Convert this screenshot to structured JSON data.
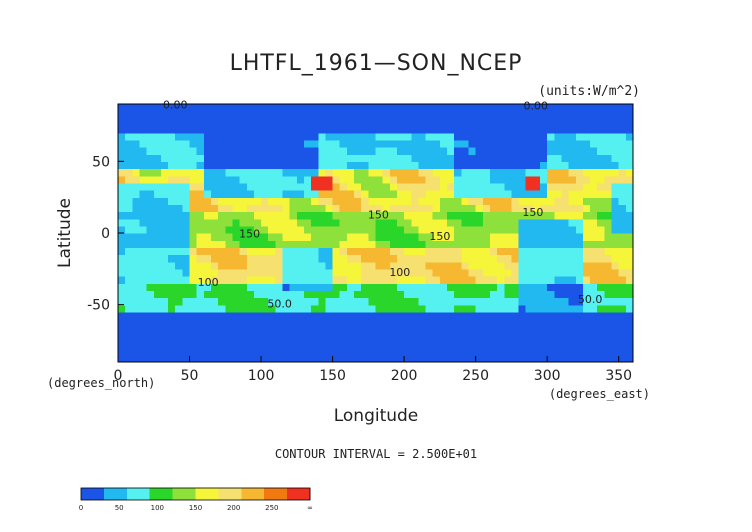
{
  "chart_data": {
    "type": "heatmap",
    "title": "LHTFL_1961—SON_NCEP",
    "units": "(units:W/m^2)",
    "xlabel": "Longitude",
    "ylabel": "Latitude",
    "x_unit_note": "(degrees_east)",
    "y_unit_note": "(degrees_north)",
    "xlim": [
      0,
      360
    ],
    "ylim": [
      -90,
      90
    ],
    "x_ticks": [
      0,
      50,
      100,
      150,
      200,
      250,
      300,
      350
    ],
    "y_ticks": [
      -50,
      0,
      50
    ],
    "contour_interval_text": "CONTOUR INTERVAL = 2.500E+01",
    "contour_labels": [
      {
        "text": "0.00",
        "x": 40,
        "y": 87
      },
      {
        "text": "0.00",
        "x": 292,
        "y": 86
      },
      {
        "text": "150",
        "x": 182,
        "y": 10
      },
      {
        "text": "150",
        "x": 290,
        "y": 12
      },
      {
        "text": "150",
        "x": 225,
        "y": -5
      },
      {
        "text": "150",
        "x": 92,
        "y": -3
      },
      {
        "text": "100",
        "x": 197,
        "y": -30
      },
      {
        "text": "100",
        "x": 63,
        "y": -37
      },
      {
        "text": "50.0",
        "x": 113,
        "y": -52
      },
      {
        "text": "50.0",
        "x": 330,
        "y": -49
      }
    ],
    "colorbar": {
      "levels": [
        0,
        50,
        100,
        150,
        200,
        250,
        "∞"
      ],
      "colors": [
        "#1a55e8",
        "#22b8f0",
        "#55f0f0",
        "#2ad62a",
        "#8ee03a",
        "#f5f53a",
        "#f5e070",
        "#f5b830",
        "#f07a10",
        "#f03020"
      ]
    },
    "regions": {
      "polar_north": {
        "lat": [
          70,
          90
        ],
        "value_range": [
          0,
          25
        ]
      },
      "midlat_north": {
        "lat": [
          45,
          70
        ],
        "value_range": [
          25,
          75
        ]
      },
      "subtrop_north": {
        "lat": [
          15,
          45
        ],
        "value_range": [
          100,
          200
        ]
      },
      "tropics": {
        "lat": [
          -10,
          15
        ],
        "value_range": [
          75,
          150
        ]
      },
      "subtrop_south": {
        "lat": [
          -35,
          -10
        ],
        "value_range": [
          125,
          200
        ]
      },
      "midlat_south": {
        "lat": [
          -55,
          -35
        ],
        "value_range": [
          50,
          100
        ]
      },
      "polar_south": {
        "lat": [
          -90,
          -55
        ],
        "value_range": [
          0,
          25
        ]
      },
      "gulf_stream_max": {
        "lon": [
          285,
          295
        ],
        "lat": [
          32,
          40
        ],
        "value_range": [
          250,
          300
        ]
      },
      "kuroshio_max": {
        "lon": [
          135,
          150
        ],
        "lat": [
          30,
          38
        ],
        "value_range": [
          200,
          250
        ]
      }
    }
  }
}
